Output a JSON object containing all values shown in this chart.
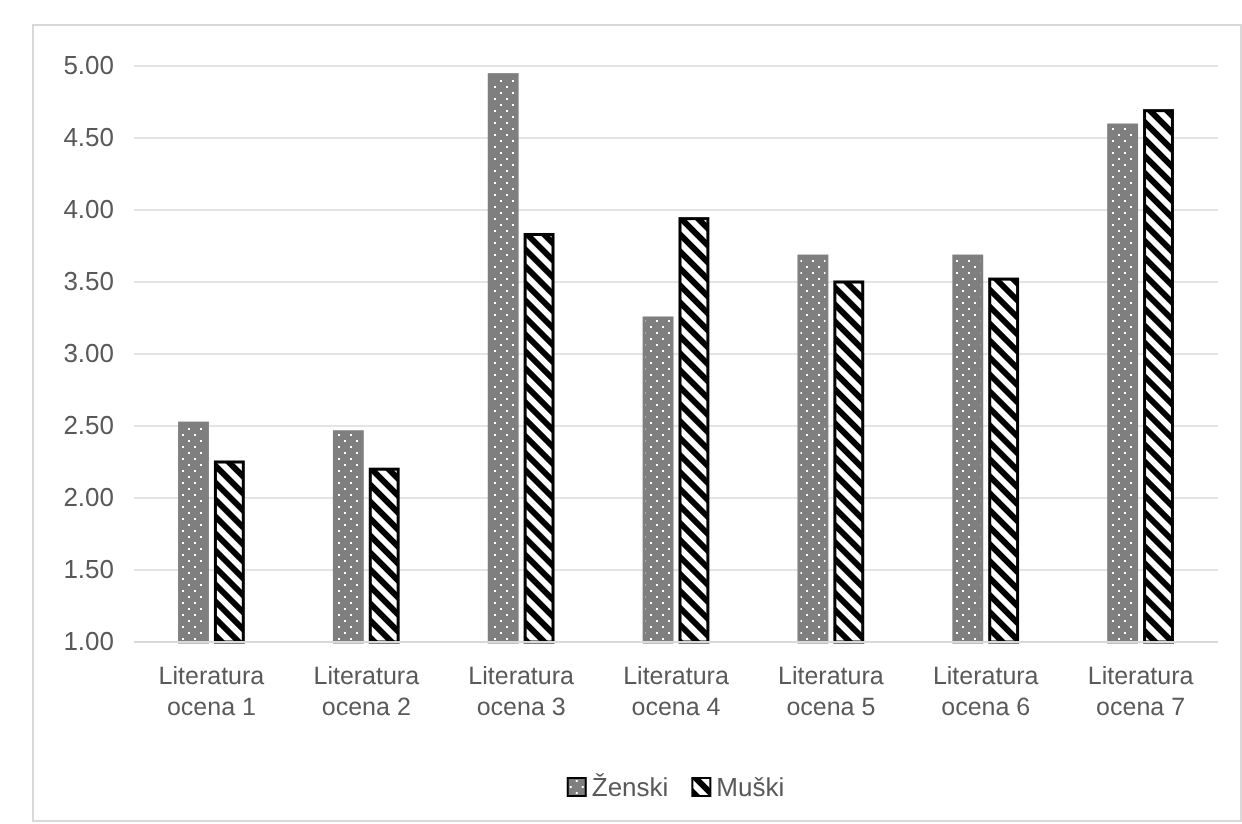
{
  "chart_data": {
    "type": "bar",
    "categories": [
      "Literatura ocena 1",
      "Literatura ocena 2",
      "Literatura ocena 3",
      "Literatura ocena 4",
      "Literatura ocena 5",
      "Literatura ocena 6",
      "Literatura ocena 7"
    ],
    "series": [
      {
        "name": "Ženski",
        "color": "#7f7f7f",
        "values": [
          2.52,
          2.46,
          4.94,
          3.25,
          3.68,
          3.68,
          4.59
        ]
      },
      {
        "name": "Muški",
        "color": "#000000",
        "values": [
          2.25,
          2.2,
          3.83,
          3.94,
          3.5,
          3.52,
          4.69
        ]
      }
    ],
    "ylim": [
      1,
      5
    ],
    "yticks": [
      {
        "value": 1,
        "label": "1.00"
      },
      {
        "value": 1.5,
        "label": "1.50"
      },
      {
        "value": 2,
        "label": "2.00"
      },
      {
        "value": 2.5,
        "label": "2.50"
      },
      {
        "value": 3,
        "label": "3.00"
      },
      {
        "value": 3.5,
        "label": "3.50"
      },
      {
        "value": 4,
        "label": "4.00"
      },
      {
        "value": 4.5,
        "label": "4.50"
      },
      {
        "value": 5,
        "label": "5.00"
      }
    ],
    "grid": "y",
    "legend": "bottom"
  }
}
